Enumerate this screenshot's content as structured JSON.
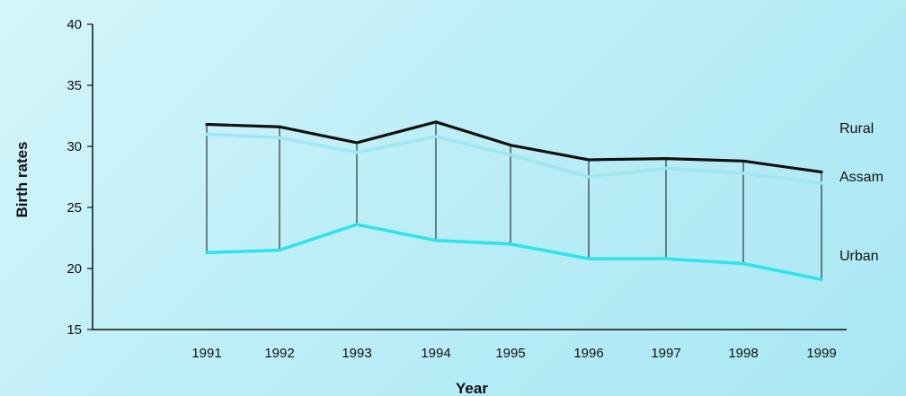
{
  "chart_data": {
    "type": "line",
    "title": "",
    "xlabel": "Year",
    "ylabel": "Birth rates",
    "ylim": [
      15,
      40
    ],
    "yticks": [
      15,
      20,
      25,
      30,
      35,
      40
    ],
    "categories": [
      "1991",
      "1992",
      "1993",
      "1994",
      "1995",
      "1996",
      "1997",
      "1998",
      "1999"
    ],
    "series": [
      {
        "name": "Rural",
        "color": "#111111",
        "values": [
          31.8,
          31.6,
          30.3,
          32.0,
          30.1,
          28.9,
          29.0,
          28.8,
          27.9
        ]
      },
      {
        "name": "Assam",
        "color": "#9fe6f0",
        "values": [
          31.0,
          30.7,
          29.5,
          30.8,
          29.3,
          27.5,
          28.2,
          27.8,
          27.0
        ]
      },
      {
        "name": "Urban",
        "color": "#2fe3ec",
        "values": [
          21.3,
          21.5,
          23.6,
          22.3,
          22.0,
          20.8,
          20.8,
          20.4,
          19.1
        ]
      }
    ],
    "grid": false,
    "legend": "right, inline labels",
    "connectors": "thin vertical lines join Rural and Urban at each year"
  }
}
